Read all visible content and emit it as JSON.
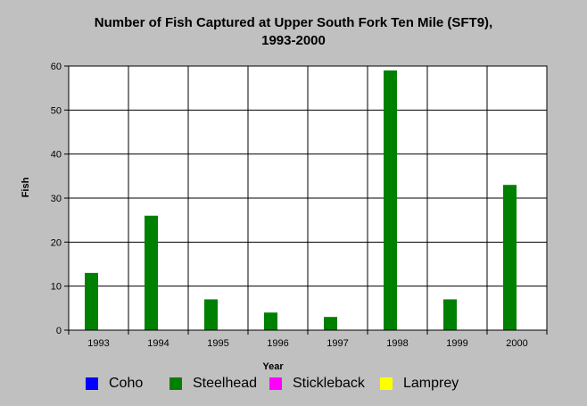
{
  "chart_data": {
    "type": "bar",
    "title_line1": "Number of Fish Captured at Upper South Fork Ten Mile (SFT9),",
    "title_line2": "1993-2000",
    "xlabel": "Year",
    "ylabel": "Fish",
    "categories": [
      "1993",
      "1994",
      "1995",
      "1996",
      "1997",
      "1998",
      "1999",
      "2000"
    ],
    "ylim": [
      0,
      60
    ],
    "yticks": [
      "0",
      "10",
      "20",
      "30",
      "40",
      "50",
      "60"
    ],
    "grid": true,
    "legend_position": "bottom",
    "series": [
      {
        "name": "Coho",
        "color": "#0000ff",
        "values": [
          0,
          0,
          0,
          0,
          0,
          0,
          0,
          0
        ]
      },
      {
        "name": "Steelhead",
        "color": "#008000",
        "values": [
          13,
          26,
          7,
          4,
          3,
          59,
          7,
          33
        ]
      },
      {
        "name": "Stickleback",
        "color": "#ff00ff",
        "values": [
          0,
          0,
          0,
          0,
          0,
          0,
          0,
          0
        ]
      },
      {
        "name": "Lamprey",
        "color": "#ffff00",
        "values": [
          0,
          0,
          0,
          0,
          0,
          0,
          0,
          0
        ]
      }
    ]
  }
}
